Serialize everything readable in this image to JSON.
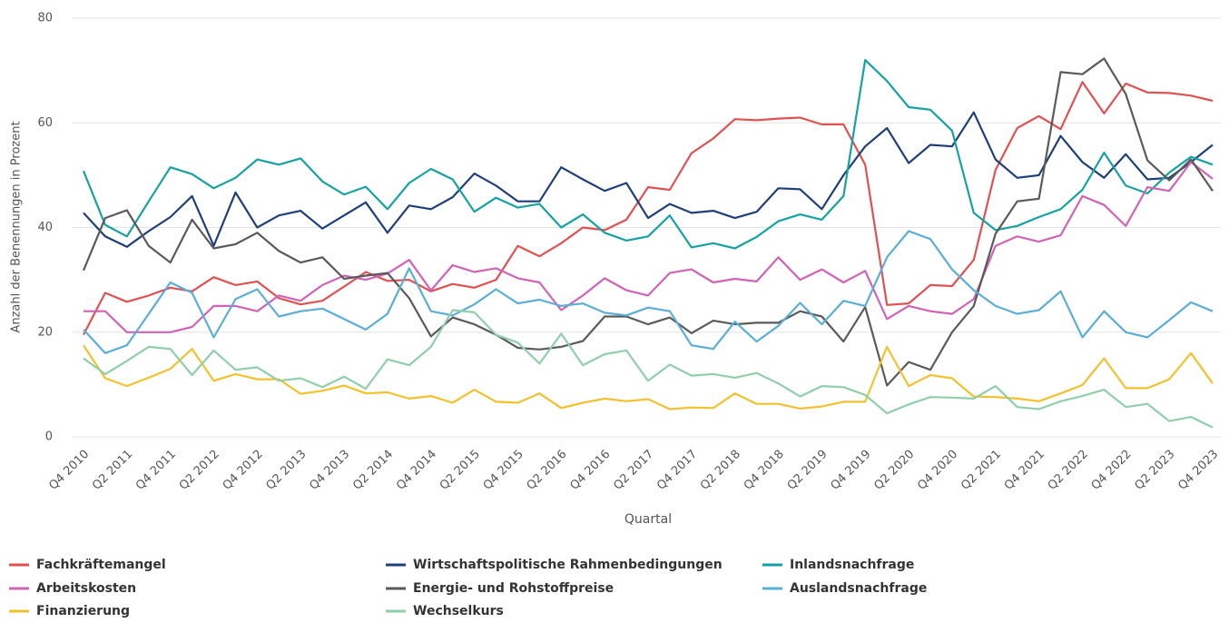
{
  "chart_data": {
    "type": "line",
    "x_label": "Quartal",
    "y_label": "Anzahl der Benennungen in Prozent",
    "categories": [
      "Q4 2010",
      null,
      "Q2 2011",
      null,
      "Q4 2011",
      null,
      "Q2 2012",
      null,
      "Q4 2012",
      null,
      "Q2 2013",
      null,
      "Q4 2013",
      null,
      "Q2 2014",
      null,
      "Q4 2014",
      null,
      "Q2 2015",
      null,
      "Q4 2015",
      null,
      "Q2 2016",
      null,
      "Q4 2016",
      null,
      "Q2 2017",
      null,
      "Q4 2017",
      null,
      "Q2 2018",
      null,
      "Q4 2018",
      null,
      "Q2 2019",
      null,
      "Q4 2019",
      null,
      "Q2 2020",
      null,
      "Q4 2020",
      null,
      "Q2 2021",
      null,
      "Q4 2021",
      null,
      "Q2 2022",
      null,
      "Q4 2022",
      null,
      "Q2 2023",
      null,
      "Q4 2023"
    ],
    "ylim": [
      0,
      80
    ],
    "yticks": [
      0,
      20,
      40,
      60,
      80
    ],
    "grid": true,
    "series": [
      {
        "name": "Fachkräftemangel",
        "color": "#e05252",
        "values": [
          19.5,
          27.5,
          25.8,
          27,
          28.5,
          27.8,
          30.5,
          29,
          29.7,
          26.5,
          25.3,
          26,
          28.7,
          31.5,
          29.8,
          30,
          27.8,
          29.2,
          28.5,
          30,
          36.5,
          34.5,
          37,
          40,
          39.5,
          41.5,
          47.7,
          47.2,
          54.2,
          57,
          60.7,
          60.5,
          60.8,
          61,
          59.7,
          59.7,
          52,
          25.2,
          25.5,
          29,
          28.8,
          33.8,
          51,
          59,
          61.3,
          58.8,
          67.8,
          61.8,
          67.5,
          65.8,
          65.7,
          65.2,
          64.2
        ]
      },
      {
        "name": "Wirtschaftspolitische Rahmenbedingungen",
        "color": "#1f3f7a",
        "values": [
          42.8,
          38.3,
          36.3,
          39.3,
          42,
          46,
          36.5,
          46.7,
          40,
          42.3,
          43.2,
          39.8,
          42.3,
          44.8,
          39,
          44.2,
          43.5,
          45.8,
          50.3,
          48,
          45,
          45,
          51.5,
          49.2,
          47,
          48.5,
          41.8,
          44.5,
          42.8,
          43.2,
          41.8,
          43,
          47.5,
          47.3,
          43.5,
          50,
          55.5,
          59,
          52.3,
          55.8,
          55.5,
          62,
          53,
          49.5,
          50,
          57.5,
          52.5,
          49.5,
          54,
          49.2,
          49.5,
          52.5,
          55.8
        ]
      },
      {
        "name": "Inlandsnachfrage",
        "color": "#16a2a2",
        "values": [
          50.8,
          40.5,
          38.3,
          45,
          51.5,
          50.2,
          47.5,
          49.5,
          53,
          52,
          53.2,
          48.8,
          46.3,
          47.8,
          43.5,
          48.5,
          51.2,
          49.2,
          43,
          45.7,
          43.8,
          44.5,
          40,
          42.5,
          39,
          37.5,
          38.3,
          42.3,
          36.2,
          37,
          36,
          38.2,
          41.2,
          42.5,
          41.5,
          46,
          72,
          68,
          63,
          62.5,
          58.5,
          42.8,
          39.5,
          40.3,
          42,
          43.5,
          47.2,
          54.3,
          48,
          46.5,
          50.5,
          53.5,
          52
        ]
      },
      {
        "name": "Arbeitskosten",
        "color": "#d063b6",
        "values": [
          24,
          24,
          20,
          20,
          20,
          21,
          25,
          25,
          24,
          27,
          26,
          29,
          30.8,
          30,
          31.2,
          33.8,
          28,
          32.8,
          31.5,
          32.2,
          30.3,
          29.5,
          24.2,
          27,
          30.3,
          28,
          27,
          31.3,
          32,
          29.5,
          30.2,
          29.7,
          34.3,
          30,
          32,
          29.5,
          31.7,
          22.5,
          25,
          24,
          23.5,
          26.3,
          36.5,
          38.3,
          37.3,
          38.5,
          46,
          44.3,
          40.3,
          47.7,
          47,
          52.5,
          49.3
        ]
      },
      {
        "name": "Energie- und Rohstoffpreise",
        "color": "#5a5a5a",
        "values": [
          31.8,
          41.8,
          43.3,
          36.5,
          33.3,
          41.5,
          36,
          36.8,
          39,
          35.5,
          33.3,
          34.3,
          30.2,
          30.8,
          31.3,
          26.5,
          19.2,
          22.8,
          21.5,
          19.5,
          17,
          16.7,
          17.2,
          18.3,
          23,
          23,
          21.5,
          22.8,
          19.8,
          22.2,
          21.5,
          21.8,
          21.8,
          24,
          23,
          18.2,
          24.8,
          9.8,
          14.3,
          12.8,
          20,
          25,
          38.8,
          45,
          45.5,
          69.7,
          69.3,
          72.3,
          65.5,
          52.8,
          49,
          53,
          47
        ]
      },
      {
        "name": "Auslandsnachfrage",
        "color": "#5aaed8",
        "values": [
          20.5,
          16,
          17.5,
          23.5,
          29.5,
          27.5,
          19,
          26.3,
          28.2,
          23,
          24,
          24.5,
          22.5,
          20.5,
          23.5,
          32.2,
          24,
          23.2,
          25.3,
          28.2,
          25.5,
          26.2,
          25,
          25.5,
          23.7,
          23.2,
          24.7,
          24,
          17.5,
          16.8,
          22,
          18.2,
          21.2,
          25.6,
          21.5,
          26,
          25,
          34.3,
          39.3,
          37.8,
          32,
          28,
          25,
          23.5,
          24.2,
          27.8,
          19,
          24,
          20,
          19,
          22.3,
          25.7,
          24
        ]
      },
      {
        "name": "Finanzierung",
        "color": "#f2c12e",
        "values": [
          17.5,
          11.2,
          9.7,
          11.3,
          13,
          16.8,
          10.7,
          12,
          11,
          11,
          8.2,
          8.8,
          9.8,
          8.3,
          8.5,
          7.3,
          7.8,
          6.5,
          9,
          6.7,
          6.5,
          8.3,
          5.5,
          6.5,
          7.3,
          6.8,
          7.2,
          5.3,
          5.6,
          5.5,
          8.3,
          6.3,
          6.3,
          5.4,
          5.8,
          6.7,
          6.7,
          17.2,
          9.7,
          11.8,
          11.2,
          7.7,
          7.6,
          7.3,
          6.8,
          8.3,
          9.9,
          15,
          9.3,
          9.3,
          11,
          16,
          10.2
        ]
      },
      {
        "name": "Wechselkurs",
        "color": "#8fcfa9",
        "values": [
          15,
          12,
          14.5,
          17.2,
          16.8,
          11.8,
          16.5,
          12.8,
          13.3,
          10.7,
          11.2,
          9.5,
          11.5,
          9.2,
          14.8,
          13.7,
          17.2,
          24.2,
          23.8,
          19.5,
          18,
          14,
          19.7,
          13.7,
          15.8,
          16.5,
          10.7,
          13.8,
          11.7,
          12,
          11.3,
          12.2,
          10.2,
          7.7,
          9.7,
          9.5,
          8,
          4.5,
          6.2,
          7.6,
          7.5,
          7.3,
          9.7,
          5.7,
          5.3,
          6.8,
          7.8,
          9,
          5.7,
          6.3,
          3,
          3.8,
          1.8
        ]
      }
    ]
  }
}
